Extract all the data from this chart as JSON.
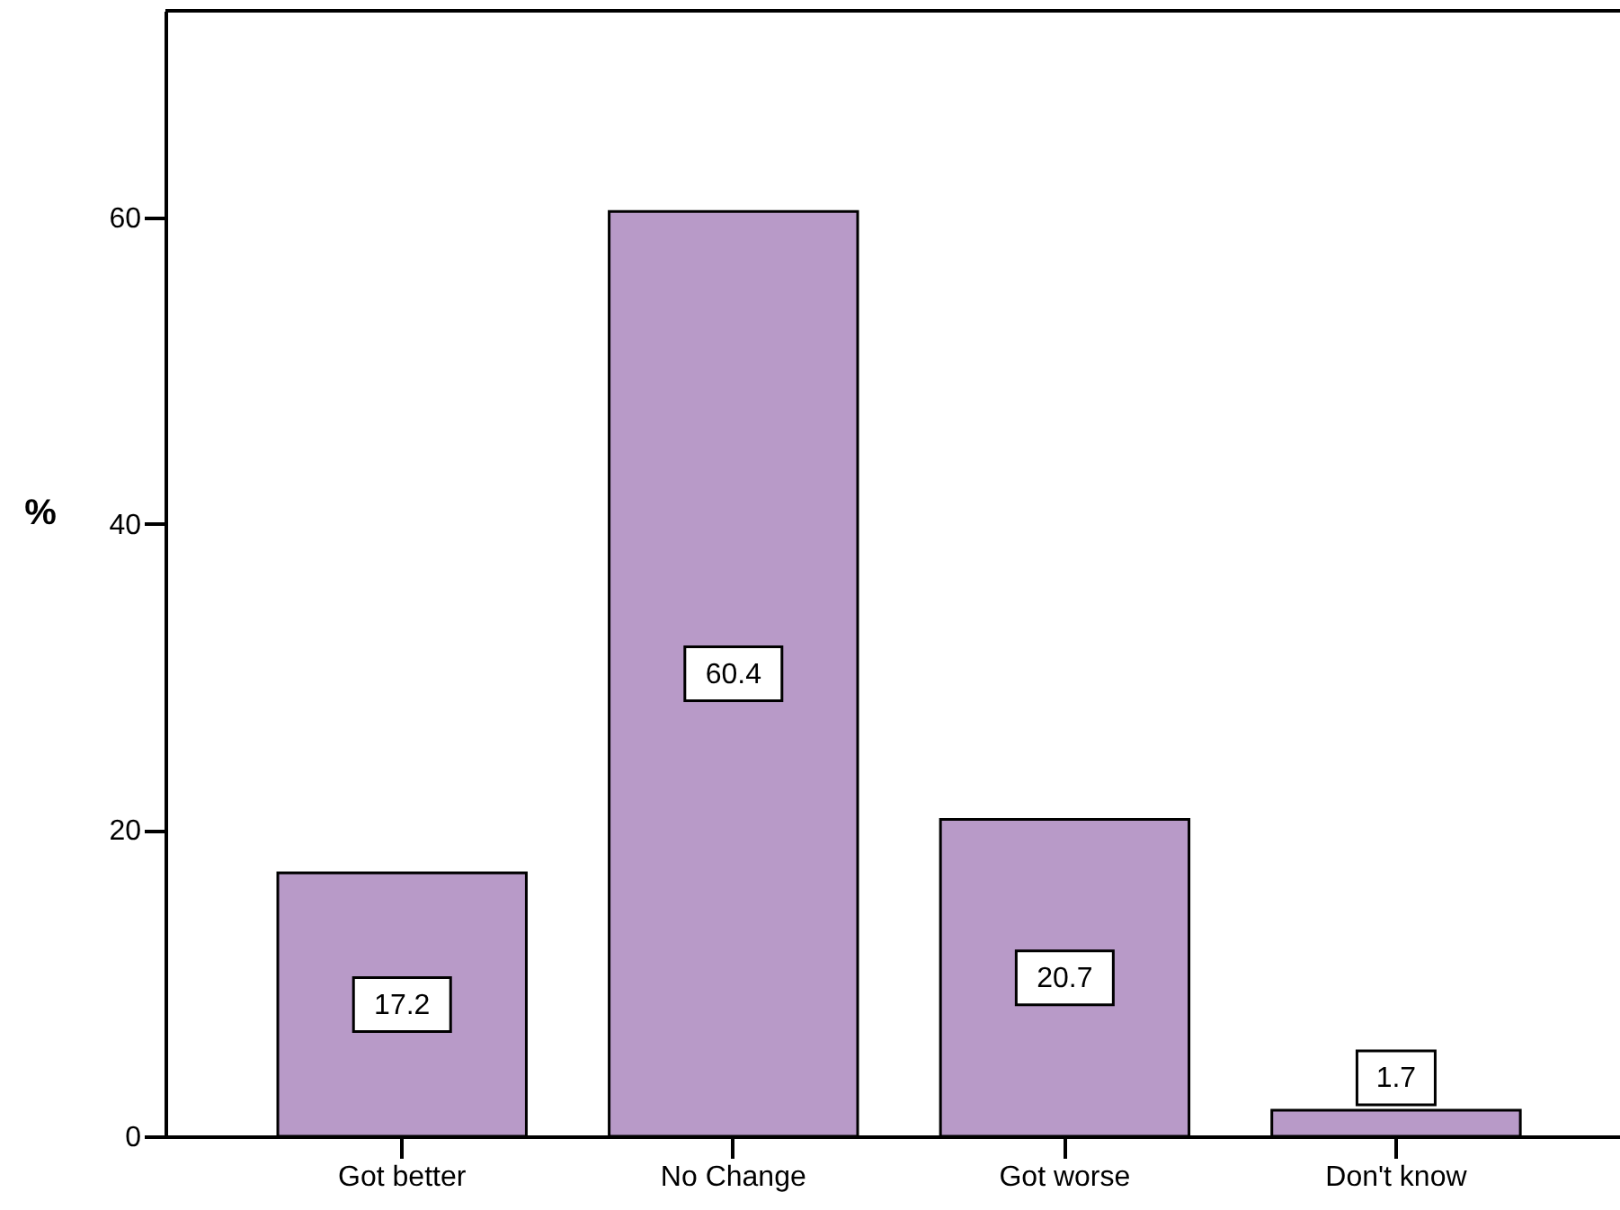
{
  "chart_data": {
    "type": "bar",
    "categories": [
      "Got better",
      "No Change",
      "Got worse",
      "Don't know"
    ],
    "values": [
      17.2,
      60.4,
      20.7,
      1.7
    ],
    "color": "#b89ac8",
    "ylabel": "%",
    "ylim": [
      0,
      73.5
    ],
    "yticks": [
      0,
      20,
      40,
      60
    ],
    "data_labels": true
  }
}
